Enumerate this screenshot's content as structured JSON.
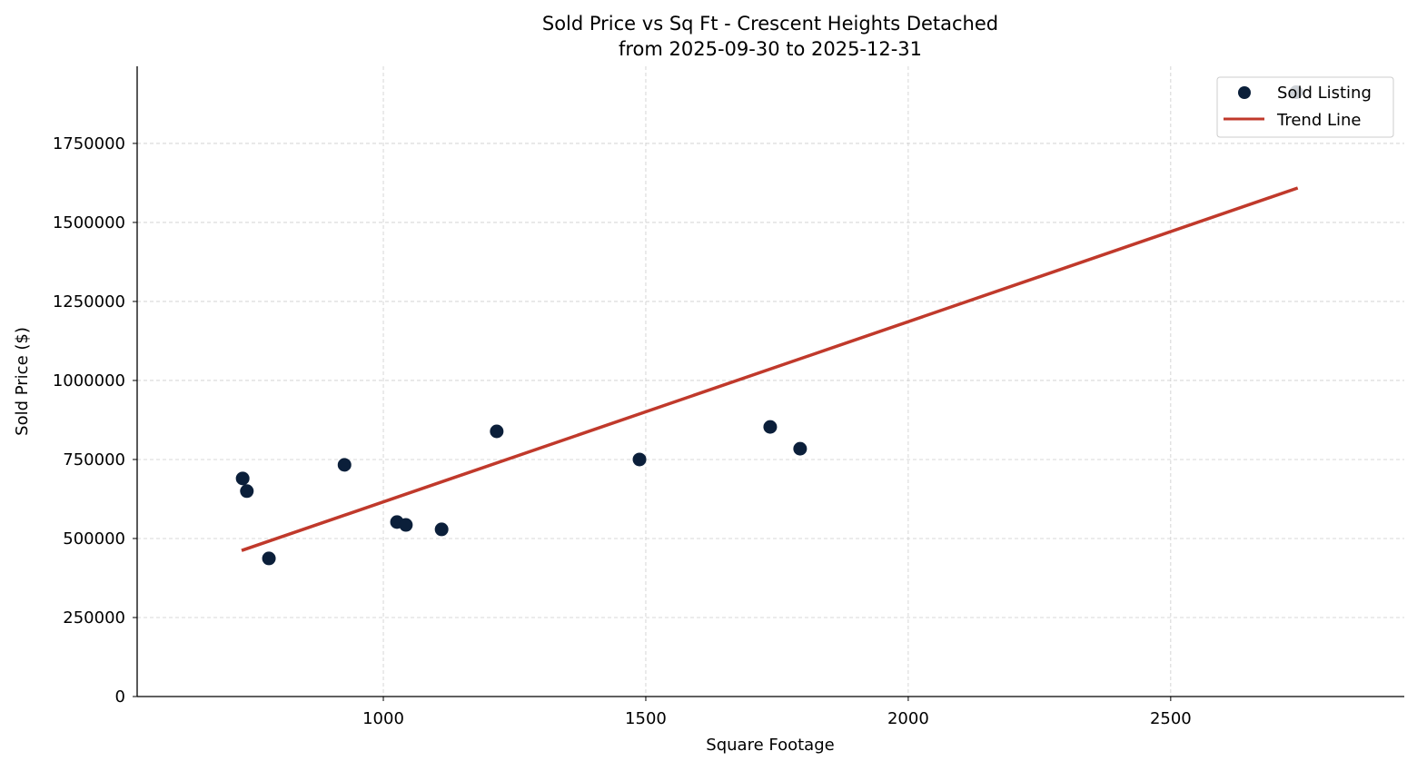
{
  "chart_data": {
    "type": "scatter",
    "title": "Sold Price vs Sq Ft - Crescent Heights Detached",
    "subtitle": "from 2025-09-30 to 2025-12-31",
    "xlabel": "Square Footage",
    "ylabel": "Sold Price ($)",
    "xlim": [
      531,
      2945
    ],
    "ylim": [
      0,
      1994000
    ],
    "xticks": [
      1000,
      1500,
      2000,
      2500
    ],
    "yticks": [
      0,
      250000,
      500000,
      750000,
      1000000,
      1250000,
      1500000,
      1750000
    ],
    "grid": true,
    "legend_position": "top-right",
    "series": [
      {
        "name": "Sold Listing",
        "kind": "scatter",
        "color": "#0b1f3a",
        "points": [
          [
            732,
            690000
          ],
          [
            740,
            650000
          ],
          [
            782,
            437000
          ],
          [
            926,
            733000
          ],
          [
            1026,
            552000
          ],
          [
            1043,
            543000
          ],
          [
            1111,
            529000
          ],
          [
            1216,
            839000
          ],
          [
            1488,
            750000
          ],
          [
            1737,
            853000
          ],
          [
            1794,
            784000
          ],
          [
            2739,
            1912000
          ]
        ]
      },
      {
        "name": "Trend Line",
        "kind": "line",
        "color": "#c0392b",
        "points": [
          [
            730,
            462000
          ],
          [
            2742,
            1609000
          ]
        ]
      }
    ]
  }
}
